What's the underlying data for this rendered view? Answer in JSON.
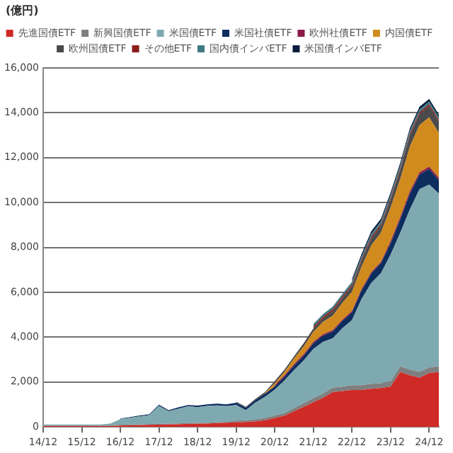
{
  "chart_data": {
    "type": "area",
    "stacked": true,
    "ylabel": "(億円)",
    "categories": [
      "14/12",
      null,
      null,
      null,
      "15/12",
      null,
      null,
      null,
      "16/12",
      null,
      null,
      null,
      "17/12",
      null,
      null,
      null,
      "18/12",
      null,
      null,
      null,
      "19/12",
      null,
      null,
      null,
      "20/12",
      null,
      null,
      null,
      "21/12",
      null,
      null,
      null,
      "22/12",
      null,
      null,
      null,
      "23/12",
      null,
      null,
      null,
      "24/12",
      null
    ],
    "series": [
      {
        "name": "先進国債ETF",
        "color": "#d02a27",
        "values": [
          40,
          40,
          40,
          40,
          40,
          40,
          40,
          40,
          60,
          70,
          80,
          90,
          100,
          110,
          120,
          130,
          140,
          150,
          170,
          190,
          200,
          220,
          250,
          300,
          400,
          500,
          700,
          900,
          1100,
          1300,
          1550,
          1600,
          1650,
          1650,
          1700,
          1730,
          1800,
          2450,
          2300,
          2200,
          2400,
          2450
        ]
      },
      {
        "name": "新興国債ETF",
        "color": "#7f7f7f",
        "values": [
          20,
          20,
          20,
          20,
          20,
          20,
          20,
          20,
          40,
          40,
          40,
          40,
          40,
          40,
          40,
          40,
          40,
          40,
          40,
          40,
          80,
          80,
          90,
          100,
          110,
          120,
          140,
          160,
          180,
          190,
          200,
          200,
          210,
          210,
          220,
          220,
          230,
          250,
          250,
          250,
          250,
          250
        ]
      },
      {
        "name": "米国債ETF",
        "color": "#7fa9b0",
        "values": [
          50,
          50,
          50,
          50,
          50,
          50,
          50,
          100,
          250,
          300,
          350,
          400,
          800,
          550,
          650,
          750,
          700,
          750,
          750,
          700,
          700,
          450,
          750,
          950,
          1150,
          1450,
          1700,
          1900,
          2200,
          2300,
          2200,
          2600,
          2900,
          3850,
          4500,
          4900,
          5650,
          5950,
          7150,
          8150,
          8150,
          7700
        ]
      },
      {
        "name": "米国社債ETF",
        "color": "#0c2d5e",
        "values": [
          null,
          null,
          null,
          null,
          null,
          null,
          null,
          null,
          30,
          30,
          40,
          40,
          50,
          50,
          60,
          60,
          70,
          70,
          80,
          80,
          100,
          100,
          110,
          130,
          150,
          170,
          200,
          220,
          250,
          280,
          300,
          320,
          350,
          380,
          420,
          450,
          500,
          600,
          700,
          650,
          700,
          600
        ]
      },
      {
        "name": "欧州社債ETF",
        "color": "#8b1a4a",
        "values": [
          null,
          null,
          null,
          null,
          null,
          null,
          null,
          null,
          null,
          null,
          null,
          null,
          null,
          null,
          null,
          null,
          null,
          null,
          null,
          null,
          null,
          null,
          null,
          null,
          60,
          60,
          60,
          60,
          60,
          60,
          60,
          60,
          60,
          60,
          60,
          60,
          100,
          100,
          100,
          100,
          100,
          100
        ]
      },
      {
        "name": "内国債ETF",
        "color": "#d08a1e",
        "values": [
          null,
          null,
          null,
          null,
          null,
          null,
          null,
          null,
          null,
          null,
          null,
          null,
          null,
          null,
          null,
          null,
          null,
          null,
          null,
          null,
          null,
          null,
          null,
          30,
          80,
          150,
          250,
          350,
          450,
          550,
          650,
          750,
          850,
          1000,
          1200,
          1300,
          1500,
          1700,
          2000,
          2100,
          2200,
          2000
        ]
      },
      {
        "name": "欧州国債ETF",
        "color": "#4a4a4a",
        "values": [
          null,
          null,
          null,
          null,
          null,
          null,
          null,
          null,
          null,
          null,
          null,
          null,
          null,
          null,
          null,
          null,
          null,
          null,
          null,
          null,
          50,
          50,
          50,
          50,
          100,
          100,
          100,
          150,
          150,
          150,
          200,
          200,
          250,
          250,
          300,
          300,
          350,
          400,
          500,
          500,
          500,
          500
        ]
      },
      {
        "name": "その他ETF",
        "color": "#8b1c1c",
        "values": [
          null,
          null,
          null,
          null,
          null,
          null,
          null,
          null,
          null,
          null,
          null,
          null,
          null,
          null,
          null,
          null,
          null,
          null,
          null,
          null,
          null,
          null,
          null,
          null,
          null,
          null,
          null,
          null,
          80,
          80,
          80,
          80,
          80,
          80,
          80,
          80,
          80,
          80,
          80,
          80,
          80,
          80
        ]
      },
      {
        "name": "国内債インバETF",
        "color": "#3e7a82",
        "values": [
          null,
          null,
          null,
          null,
          null,
          null,
          null,
          null,
          null,
          null,
          null,
          null,
          null,
          null,
          null,
          null,
          null,
          null,
          null,
          null,
          null,
          null,
          null,
          null,
          null,
          null,
          null,
          null,
          120,
          120,
          120,
          120,
          120,
          120,
          120,
          120,
          120,
          120,
          120,
          120,
          120,
          120
        ]
      },
      {
        "name": "米国債インバETF",
        "color": "#0a1e3c",
        "values": [
          null,
          null,
          null,
          null,
          null,
          null,
          null,
          null,
          null,
          null,
          null,
          null,
          null,
          null,
          null,
          null,
          null,
          null,
          null,
          null,
          null,
          null,
          null,
          null,
          null,
          null,
          null,
          null,
          null,
          null,
          null,
          null,
          120,
          120,
          120,
          120,
          120,
          120,
          120,
          120,
          120,
          120
        ]
      }
    ],
    "ylim": [
      0,
      16000
    ],
    "yticks": [
      0,
      {
        "value": 2000,
        "label": "2,000"
      },
      {
        "value": 4000,
        "label": "4,000"
      },
      {
        "value": 6000,
        "label": "6,000"
      },
      {
        "value": 8000,
        "label": "8,000"
      },
      {
        "value": 10000,
        "label": "10,000"
      },
      {
        "value": 12000,
        "label": "12,000"
      },
      {
        "value": 14000,
        "label": "14,000"
      },
      {
        "value": 16000,
        "label": "16,000"
      }
    ],
    "grid": "y",
    "legend": "top"
  }
}
